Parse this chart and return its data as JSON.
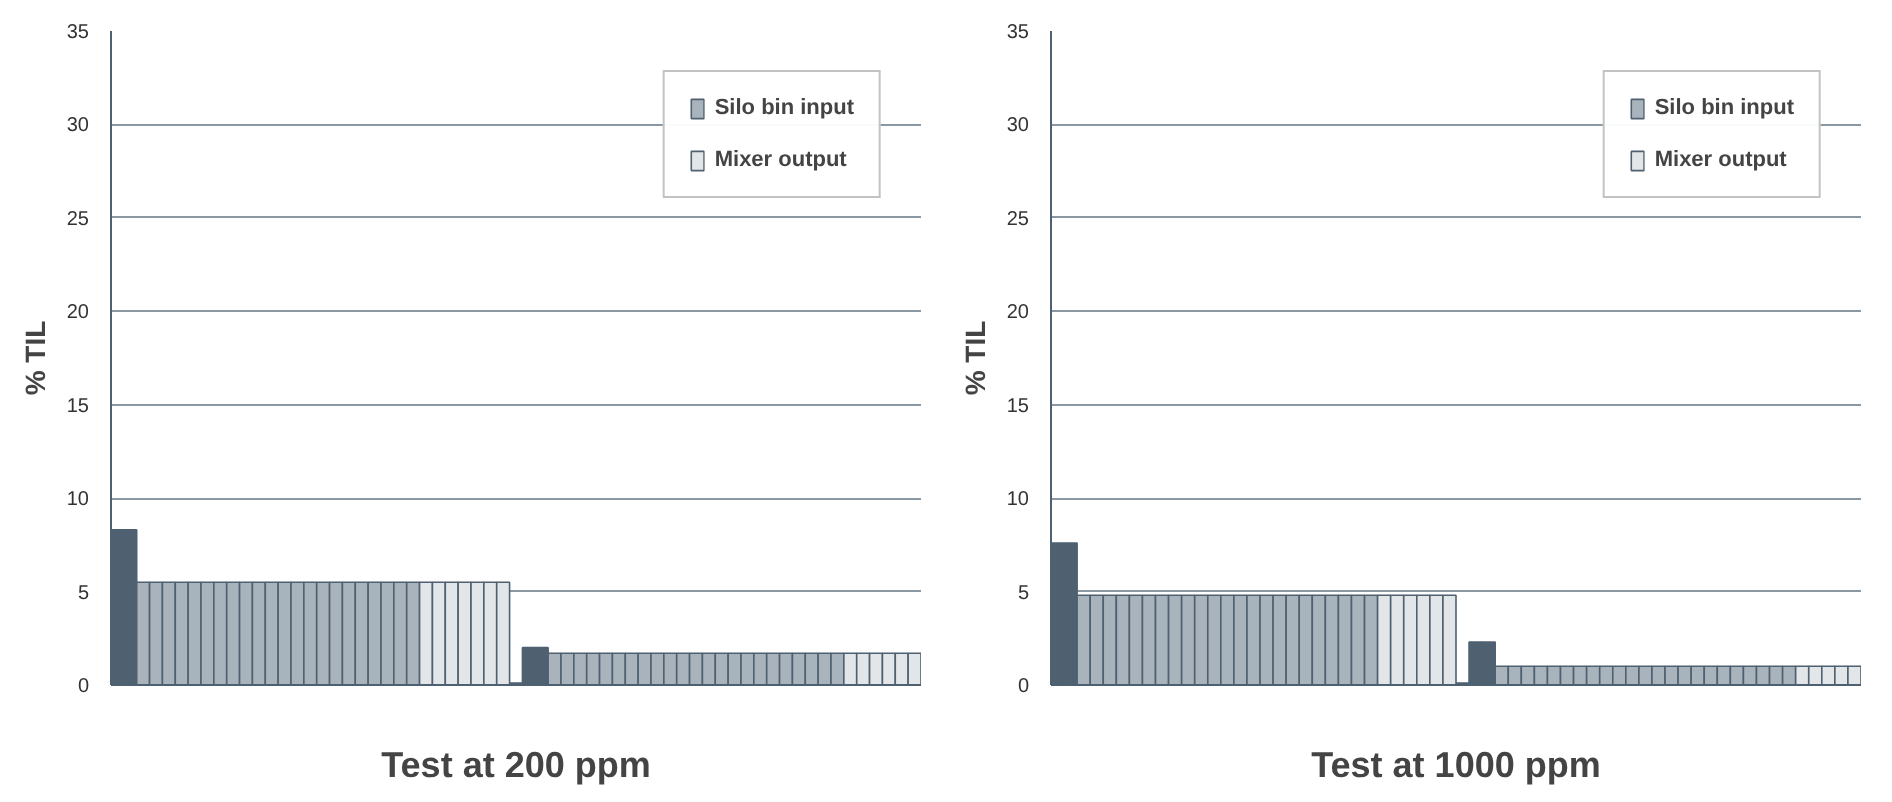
{
  "chart_data": [
    {
      "type": "bar",
      "xlabel": "Test at 200 ppm",
      "ylabel": "% TIL",
      "ylim": [
        0,
        35
      ],
      "yticks": [
        0,
        5,
        10,
        15,
        20,
        25,
        30,
        35
      ],
      "grid": "y",
      "legend": "top right",
      "categories": [
        null,
        null,
        null,
        null,
        null,
        null,
        null,
        null,
        null,
        null,
        null,
        null,
        null,
        null,
        null,
        null,
        null,
        null,
        null,
        null,
        null,
        null,
        null,
        null,
        null,
        null,
        null,
        null,
        null,
        null,
        null,
        null,
        null,
        null,
        null,
        null,
        null,
        null,
        null,
        null,
        null,
        null,
        null,
        null,
        null,
        null,
        null,
        null,
        null,
        null,
        null,
        null,
        null,
        null,
        null,
        null,
        null,
        null,
        null,
        null,
        null,
        null,
        null
      ],
      "series": [
        {
          "color": "#4f6170",
          "values": [
            8.3,
            8.3,
            null,
            null,
            null,
            null,
            null,
            null,
            null,
            null,
            null,
            null,
            null,
            null,
            null,
            null,
            null,
            null,
            null,
            null,
            null,
            null,
            null,
            null,
            null,
            null,
            null,
            null,
            null,
            null,
            null,
            0.1,
            2.0,
            2.0,
            null,
            null,
            null,
            null,
            null,
            null,
            null,
            null,
            null,
            null,
            null,
            null,
            null,
            null,
            null,
            null,
            null,
            null,
            null,
            null,
            null,
            null,
            null,
            null,
            null,
            null,
            null,
            null,
            null
          ]
        },
        {
          "name": "Silo bin input",
          "color": "#a9b3bc",
          "values": [
            null,
            null,
            5.5,
            5.5,
            5.5,
            5.5,
            5.5,
            5.5,
            5.5,
            5.5,
            5.5,
            5.5,
            5.5,
            5.5,
            5.5,
            5.5,
            5.5,
            5.5,
            5.5,
            5.5,
            5.5,
            5.5,
            5.5,
            5.5,
            null,
            null,
            null,
            null,
            null,
            null,
            null,
            null,
            null,
            null,
            1.7,
            1.7,
            1.7,
            1.7,
            1.7,
            1.7,
            1.7,
            1.7,
            1.7,
            1.7,
            1.7,
            1.7,
            1.7,
            1.7,
            1.7,
            1.7,
            1.7,
            1.7,
            1.7,
            1.7,
            1.7,
            1.7,
            1.7,
            null,
            null,
            null,
            null,
            null,
            null
          ]
        },
        {
          "name": "Mixer output",
          "color": "#e2e6e9",
          "values": [
            null,
            null,
            null,
            null,
            null,
            null,
            null,
            null,
            null,
            null,
            null,
            null,
            null,
            null,
            null,
            null,
            null,
            null,
            null,
            null,
            null,
            null,
            null,
            null,
            5.5,
            5.5,
            5.5,
            5.5,
            5.5,
            5.5,
            5.5,
            null,
            null,
            null,
            null,
            null,
            null,
            null,
            null,
            null,
            null,
            null,
            null,
            null,
            null,
            null,
            null,
            null,
            null,
            null,
            null,
            null,
            null,
            null,
            null,
            null,
            null,
            1.7,
            1.7,
            1.7,
            1.7,
            1.7,
            1.7
          ]
        }
      ]
    },
    {
      "type": "bar",
      "xlabel": "Test at 1000 ppm",
      "ylabel": "% TIL",
      "ylim": [
        0,
        35
      ],
      "yticks": [
        0,
        5,
        10,
        15,
        20,
        25,
        30,
        35
      ],
      "grid": "y",
      "legend": "top right",
      "categories": [
        null,
        null,
        null,
        null,
        null,
        null,
        null,
        null,
        null,
        null,
        null,
        null,
        null,
        null,
        null,
        null,
        null,
        null,
        null,
        null,
        null,
        null,
        null,
        null,
        null,
        null,
        null,
        null,
        null,
        null,
        null,
        null,
        null,
        null,
        null,
        null,
        null,
        null,
        null,
        null,
        null,
        null,
        null,
        null,
        null,
        null,
        null,
        null,
        null,
        null,
        null,
        null,
        null,
        null,
        null,
        null,
        null,
        null,
        null,
        null,
        null,
        null
      ],
      "series": [
        {
          "color": "#4f6170",
          "values": [
            7.6,
            7.6,
            null,
            null,
            null,
            null,
            null,
            null,
            null,
            null,
            null,
            null,
            null,
            null,
            null,
            null,
            null,
            null,
            null,
            null,
            null,
            null,
            null,
            null,
            null,
            null,
            null,
            null,
            null,
            null,
            null,
            0.1,
            2.3,
            2.3,
            null,
            null,
            null,
            null,
            null,
            null,
            null,
            null,
            null,
            null,
            null,
            null,
            null,
            null,
            null,
            null,
            null,
            null,
            null,
            null,
            null,
            null,
            null,
            null,
            null,
            null,
            null,
            null
          ]
        },
        {
          "name": "Silo bin input",
          "color": "#a9b3bc",
          "values": [
            null,
            null,
            4.8,
            4.8,
            4.8,
            4.8,
            4.8,
            4.8,
            4.8,
            4.8,
            4.8,
            4.8,
            4.8,
            4.8,
            4.8,
            4.8,
            4.8,
            4.8,
            4.8,
            4.8,
            4.8,
            4.8,
            4.8,
            4.8,
            4.8,
            null,
            null,
            null,
            null,
            null,
            null,
            null,
            null,
            null,
            1.0,
            1.0,
            1.0,
            1.0,
            1.0,
            1.0,
            1.0,
            1.0,
            1.0,
            1.0,
            1.0,
            1.0,
            1.0,
            1.0,
            1.0,
            1.0,
            1.0,
            1.0,
            1.0,
            1.0,
            1.0,
            1.0,
            1.0,
            null,
            null,
            null,
            null,
            null
          ]
        },
        {
          "name": "Mixer output",
          "color": "#e2e6e9",
          "values": [
            null,
            null,
            null,
            null,
            null,
            null,
            null,
            null,
            null,
            null,
            null,
            null,
            null,
            null,
            null,
            null,
            null,
            null,
            null,
            null,
            null,
            null,
            null,
            null,
            null,
            4.8,
            4.8,
            4.8,
            4.8,
            4.8,
            4.8,
            null,
            null,
            null,
            null,
            null,
            null,
            null,
            null,
            null,
            null,
            null,
            null,
            null,
            null,
            null,
            null,
            null,
            null,
            null,
            null,
            null,
            null,
            null,
            null,
            null,
            null,
            1.0,
            1.0,
            1.0,
            1.0,
            1.0
          ]
        }
      ]
    }
  ]
}
